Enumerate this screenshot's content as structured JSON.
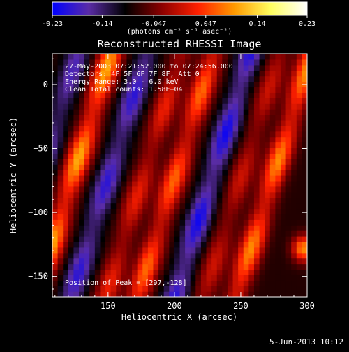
{
  "colorbar": {
    "ticks": [
      "-0.23",
      "-0.14",
      "-0.047",
      "0.047",
      "0.14",
      "0.23"
    ],
    "tick_values": [
      -0.23,
      -0.14,
      -0.047,
      0.047,
      0.14,
      0.23
    ],
    "units": "(photons cm⁻² s⁻¹ asec⁻²)",
    "colors": [
      "#0000ff",
      "#5a2ca6",
      "#000000",
      "#8b0000",
      "#ff2000",
      "#ff9a00",
      "#ffff60",
      "#ffffff"
    ]
  },
  "chart_data": {
    "type": "heatmap",
    "title": "Reconstructed RHESSI Image",
    "xlabel": "Heliocentric X (arcsec)",
    "ylabel": "Heliocentric Y (arcsec)",
    "xlim": [
      108,
      300
    ],
    "ylim": [
      -166,
      24
    ],
    "xticks": [
      150,
      200,
      250,
      300
    ],
    "yticks": [
      0,
      -50,
      -100,
      -150
    ],
    "xtick_labels": [
      "150",
      "200",
      "250",
      "300"
    ],
    "ytick_labels": [
      "0",
      "−50",
      "−100",
      "−150"
    ],
    "annotations": [
      "27-May-2003 07:21:52.000 to 07:24:56.000",
      "Detectors: 4F 5F 6F 7F 8F, Att 0",
      "Energy Range: 3.0 - 6.0 keV",
      "Clean    Total counts: 1.58E+04"
    ],
    "peak_label": "Position of Peak = [297,-128]",
    "peak": [
      297,
      -128
    ],
    "stripes": [
      {
        "x0": 120,
        "slope": 0.3,
        "sign": -1,
        "amp": 0.5
      },
      {
        "x0": 145,
        "slope": 0.3,
        "sign": 1,
        "amp": 1.0
      },
      {
        "x0": 172,
        "slope": 0.3,
        "sign": -1,
        "amp": 0.6
      },
      {
        "x0": 198,
        "slope": 0.3,
        "sign": 1,
        "amp": 0.55
      },
      {
        "x0": 222,
        "slope": 0.3,
        "sign": 1,
        "amp": 0.8
      },
      {
        "x0": 250,
        "slope": 0.3,
        "sign": -1,
        "amp": 0.7
      },
      {
        "x0": 272,
        "slope": 0.3,
        "sign": 1,
        "amp": 0.45
      },
      {
        "x0": 296,
        "slope": 0.3,
        "sign": 1,
        "amp": 0.9
      }
    ]
  },
  "timestamp": "5-Jun-2013 10:12"
}
